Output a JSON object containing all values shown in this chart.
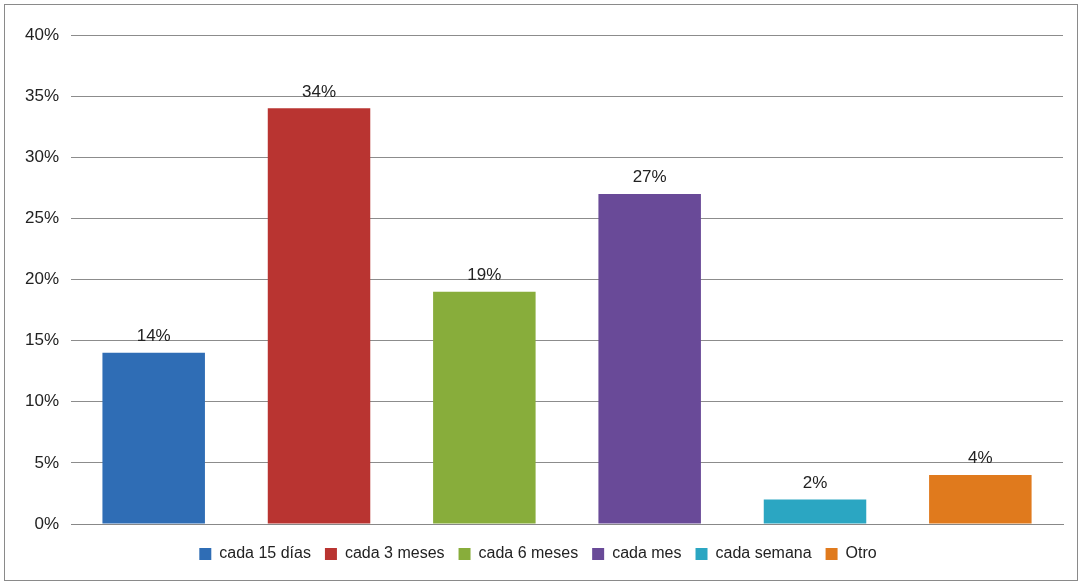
{
  "chart_data": {
    "type": "bar",
    "categories": [
      null
    ],
    "series": [
      {
        "name": "cada 15 días",
        "color": "#2f6db5",
        "values": [
          14
        ],
        "value_labels": [
          "14%"
        ]
      },
      {
        "name": "cada 3 meses",
        "color": "#b93431",
        "values": [
          34
        ],
        "value_labels": [
          "34%"
        ]
      },
      {
        "name": "cada 6 meses",
        "color": "#88ad3b",
        "values": [
          19
        ],
        "value_labels": [
          "19%"
        ]
      },
      {
        "name": "cada mes",
        "color": "#694a98",
        "values": [
          27
        ],
        "value_labels": [
          "27%"
        ]
      },
      {
        "name": "cada semana",
        "color": "#2ba6c2",
        "values": [
          2
        ],
        "value_labels": [
          "2%"
        ]
      },
      {
        "name": "Otro",
        "color": "#e07a1d",
        "values": [
          4
        ],
        "value_labels": [
          "4%"
        ]
      }
    ],
    "ylim": [
      0,
      40
    ],
    "yticks": [
      {
        "value": 0,
        "label": "0%"
      },
      {
        "value": 5,
        "label": "5%"
      },
      {
        "value": 10,
        "label": "10%"
      },
      {
        "value": 15,
        "label": "15%"
      },
      {
        "value": 20,
        "label": "20%"
      },
      {
        "value": 25,
        "label": "25%"
      },
      {
        "value": 30,
        "label": "30%"
      },
      {
        "value": 35,
        "label": "35%"
      },
      {
        "value": 40,
        "label": "40%"
      }
    ],
    "grid": "y",
    "legend": "bottom",
    "tick_labels": "y"
  }
}
